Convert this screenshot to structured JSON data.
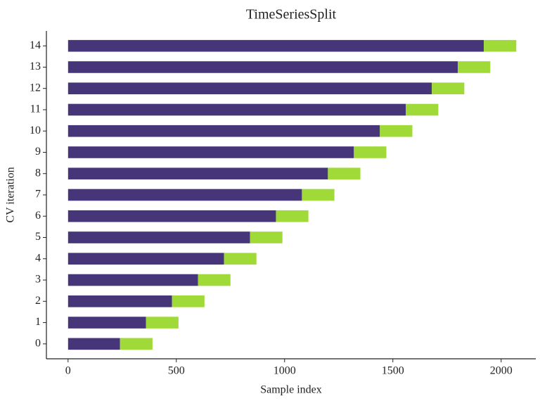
{
  "chart_data": {
    "type": "stacked-barh",
    "title": "TimeSeriesSplit",
    "xlabel": "Sample index",
    "ylabel": "CV iteration",
    "xlim": [
      -100,
      2160
    ],
    "xticks": [
      0,
      500,
      1000,
      1500,
      2000
    ],
    "ylim": [
      -0.7,
      14.7
    ],
    "yticks": [
      0,
      1,
      2,
      3,
      4,
      5,
      6,
      7,
      8,
      9,
      10,
      11,
      12,
      13,
      14
    ],
    "series": [
      {
        "color": "#473579",
        "values": [
          240,
          360,
          480,
          600,
          720,
          840,
          960,
          1080,
          1200,
          1320,
          1440,
          1560,
          1680,
          1800,
          1920
        ]
      },
      {
        "color": "#a0da39",
        "values": [
          150,
          150,
          150,
          150,
          150,
          150,
          150,
          150,
          150,
          150,
          150,
          150,
          150,
          150,
          150
        ]
      }
    ]
  }
}
